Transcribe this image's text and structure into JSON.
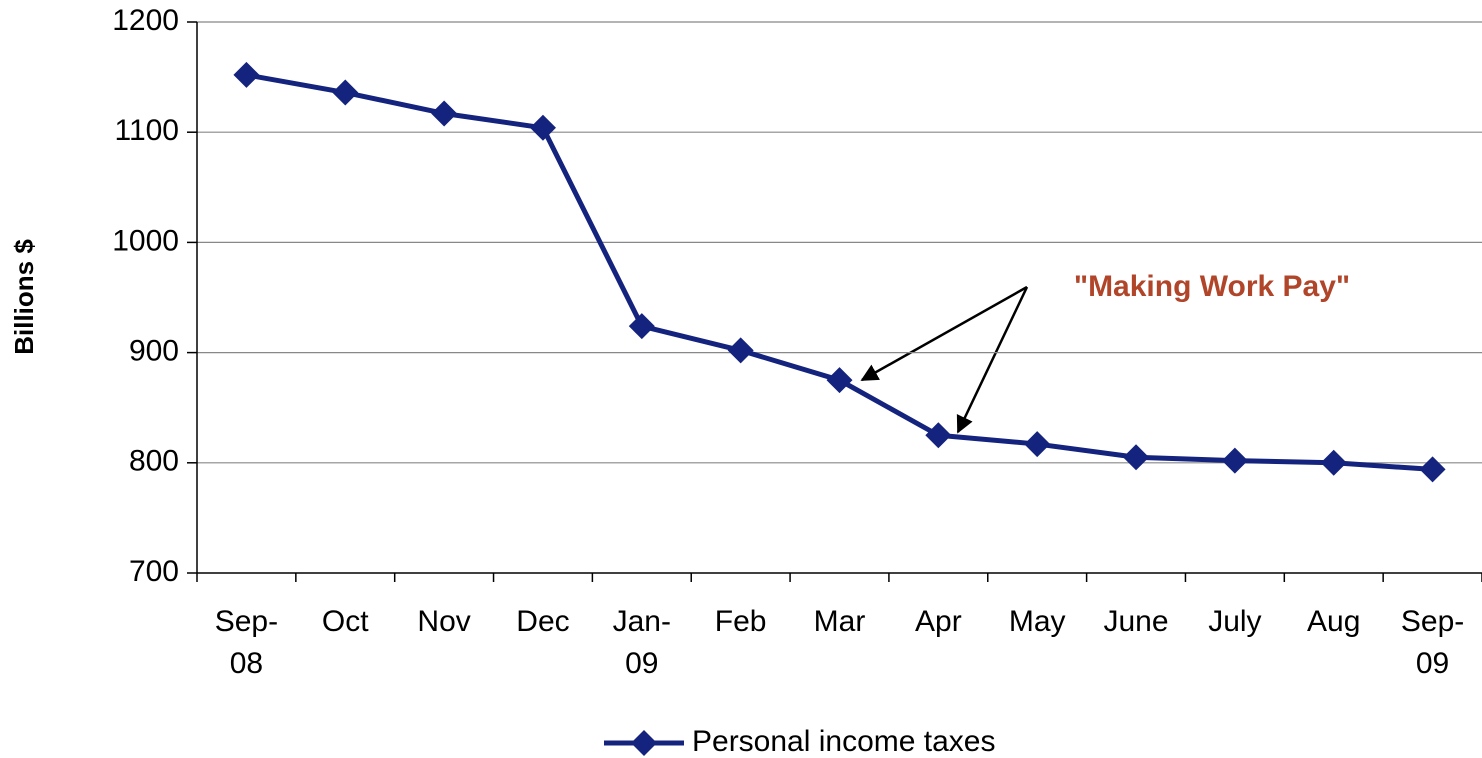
{
  "chart_data": {
    "type": "line",
    "y_label": "Billions $",
    "categories": [
      "Sep-08",
      "Oct",
      "Nov",
      "Dec",
      "Jan-09",
      "Feb",
      "Mar",
      "Apr",
      "May",
      "June",
      "July",
      "Aug",
      "Sep-09"
    ],
    "series": [
      {
        "name": "Personal income taxes",
        "color": "#14237d",
        "values": [
          1152,
          1136,
          1117,
          1104,
          924,
          902,
          875,
          825,
          817,
          805,
          802,
          800,
          794
        ]
      }
    ],
    "ylim": [
      700,
      1200
    ],
    "yticks": [
      700,
      800,
      900,
      1000,
      1100,
      1200
    ],
    "grid": true,
    "legend": "bottom",
    "annotation": "\"Making Work Pay\""
  }
}
